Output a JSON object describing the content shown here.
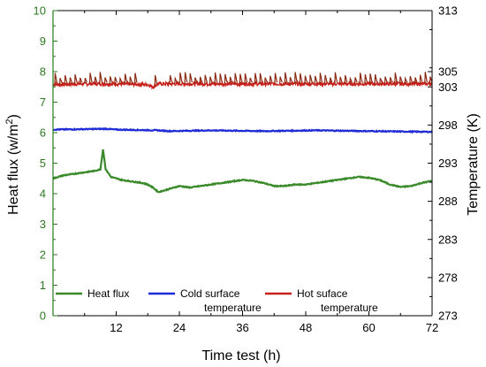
{
  "chart_data": {
    "type": "line",
    "xlabel": "Time test (h)",
    "ylabel_left": "Heat flux (w/m",
    "ylabel_left_sup": "2",
    "ylabel_left_close": ")",
    "ylabel_right": "Temperature (K)",
    "xlim": [
      0,
      72
    ],
    "x_ticks": [
      "12",
      "24",
      "36",
      "48",
      "60",
      "72"
    ],
    "ylim_left": [
      0,
      10
    ],
    "y_ticks_left": [
      "0",
      "1",
      "2",
      "3",
      "4",
      "5",
      "6",
      "7",
      "8",
      "9",
      "10"
    ],
    "ylim_right": [
      273,
      313
    ],
    "y_ticks_right": [
      "273",
      "278",
      "283",
      "288",
      "293",
      "298",
      "303",
      "305",
      "313"
    ],
    "grid": false,
    "legend_position": "bottom-left inside",
    "colors": {
      "left_axis": "#2a7a1e",
      "heat_flux": "#3a8a2a",
      "cold": "#1f2bd6",
      "hot": "#c8201a",
      "hot_spikes": "#8b2a12"
    },
    "series": [
      {
        "name": "Heat flux",
        "axis": "left",
        "x": [
          0,
          2,
          4,
          6,
          8,
          9,
          9.5,
          10,
          11,
          13,
          15,
          17,
          18,
          19,
          20,
          22,
          24,
          26,
          28,
          30,
          32,
          34,
          36,
          38,
          40,
          42,
          44,
          46,
          48,
          50,
          52,
          54,
          56,
          58,
          60,
          62,
          64,
          66,
          68,
          70,
          72
        ],
        "y": [
          4.5,
          4.6,
          4.65,
          4.7,
          4.75,
          4.8,
          5.45,
          4.8,
          4.55,
          4.45,
          4.4,
          4.35,
          4.3,
          4.2,
          4.05,
          4.15,
          4.25,
          4.2,
          4.25,
          4.3,
          4.35,
          4.4,
          4.45,
          4.42,
          4.35,
          4.25,
          4.25,
          4.3,
          4.3,
          4.35,
          4.4,
          4.45,
          4.5,
          4.55,
          4.52,
          4.45,
          4.3,
          4.22,
          4.25,
          4.35,
          4.42
        ]
      },
      {
        "name": "Cold surface temperature",
        "axis": "right",
        "x": [
          0,
          10,
          12,
          20,
          22,
          30,
          40,
          50,
          60,
          72
        ],
        "y": [
          297.4,
          297.5,
          297.4,
          297.3,
          297.2,
          297.3,
          297.2,
          297.3,
          297.2,
          297.1
        ]
      },
      {
        "name": "Hot suface temperature",
        "axis": "right",
        "x": [
          0,
          6,
          12,
          18,
          19,
          20,
          24,
          30,
          36,
          42,
          48,
          54,
          60,
          66,
          72
        ],
        "y": [
          303.3,
          303.4,
          303.4,
          303.3,
          303.0,
          303.4,
          303.4,
          303.4,
          303.4,
          303.4,
          303.4,
          303.4,
          303.4,
          303.4,
          303.4
        ],
        "spike_level": 304.5
      }
    ],
    "legend": [
      {
        "label_line1": "Heat flux",
        "label_line2": ""
      },
      {
        "label_line1": "Cold surface",
        "label_line2": "temperature"
      },
      {
        "label_line1": "Hot suface",
        "label_line2": "temperature"
      }
    ]
  }
}
